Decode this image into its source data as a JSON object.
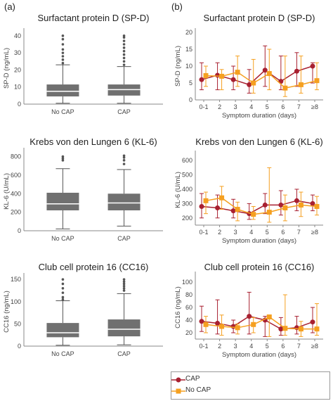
{
  "panel_labels": [
    "(a)",
    "(b)"
  ],
  "colors": {
    "cap": "#a82030",
    "nocap": "#f5a020",
    "box": "#707070"
  },
  "legend": {
    "cap": "CAP",
    "nocap": "No CAP"
  },
  "chart_data": [
    {
      "type": "box",
      "title": "Surfactant protein D (SP-D)",
      "ylabel": "SP-D (ng/mL)",
      "ylim": [
        0,
        42
      ],
      "yticks": [
        0,
        10,
        20,
        30,
        40
      ],
      "categories": [
        "No CAP",
        "CAP"
      ],
      "boxes": [
        {
          "whisker_low": 0.5,
          "q1": 4.5,
          "median": 7.5,
          "q3": 11.5,
          "whisker_high": 23,
          "outliers": [
            24,
            26,
            28,
            30,
            32,
            35,
            38,
            40
          ]
        },
        {
          "whisker_low": 0.5,
          "q1": 5,
          "median": 8.5,
          "q3": 11.5,
          "whisker_high": 22,
          "outliers": [
            23,
            25,
            27,
            29,
            31,
            33,
            35,
            37,
            39,
            40
          ]
        }
      ]
    },
    {
      "type": "box",
      "title": "Krebs von den Lungen 6 (KL-6)",
      "ylabel": "KL-6 (U/mL)",
      "ylim": [
        0,
        850
      ],
      "yticks": [
        0,
        200,
        400,
        600,
        800
      ],
      "categories": [
        "No CAP",
        "CAP"
      ],
      "boxes": [
        {
          "whisker_low": 20,
          "q1": 220,
          "median": 290,
          "q3": 410,
          "whisker_high": 670,
          "outliers": [
            760,
            780,
            800
          ]
        },
        {
          "whisker_low": 50,
          "q1": 220,
          "median": 300,
          "q3": 400,
          "whisker_high": 660,
          "outliers": [
            720,
            760,
            790,
            810
          ]
        }
      ]
    },
    {
      "type": "box",
      "title": "Club cell protein 16 (CC16)",
      "ylabel": "CC16 (ng/mL)",
      "ylim": [
        0,
        155
      ],
      "yticks": [
        0,
        50,
        100,
        150
      ],
      "categories": [
        "No CAP",
        "CAP"
      ],
      "boxes": [
        {
          "whisker_low": 2,
          "q1": 20,
          "median": 30,
          "q3": 52,
          "whisker_high": 102,
          "outliers": [
            105,
            110,
            120,
            130,
            140,
            150
          ]
        },
        {
          "whisker_low": 3,
          "q1": 22,
          "median": 38,
          "q3": 60,
          "whisker_high": 118,
          "outliers": [
            125,
            130,
            135,
            140,
            145,
            150
          ]
        }
      ]
    },
    {
      "type": "line",
      "title": "Surfactant protein D (SP-D)",
      "ylabel": "SP-D (ng/mL)",
      "xlabel": "Symptom duration (days)",
      "ylim": [
        0,
        20
      ],
      "yticks": [
        0,
        5,
        10,
        15,
        20
      ],
      "categories": [
        "0-1",
        "2",
        "3",
        "4",
        "5",
        "6",
        "7",
        "≥8"
      ],
      "series": [
        {
          "name": "CAP",
          "values": [
            6,
            7.3,
            6,
            4.5,
            8.8,
            5.5,
            8.5,
            10
          ],
          "low": [
            3,
            3,
            3,
            2,
            4,
            3,
            4,
            5
          ],
          "high": [
            11,
            11,
            10,
            9,
            16,
            13,
            14,
            11
          ]
        },
        {
          "name": "No CAP",
          "values": [
            7.2,
            7,
            8.2,
            5,
            7.8,
            3.5,
            4.5,
            5.7
          ],
          "low": [
            4,
            3,
            4,
            2,
            3,
            1,
            2,
            3
          ],
          "high": [
            10,
            9,
            13,
            12,
            15,
            13,
            13,
            11
          ]
        }
      ]
    },
    {
      "type": "line",
      "title": "Krebs von den Lungen 6 (KL-6)",
      "ylabel": "KL-6 (U/mL)",
      "xlabel": "Symptom duration (days)",
      "ylim": [
        150,
        640
      ],
      "yticks": [
        200,
        300,
        400,
        500,
        600
      ],
      "categories": [
        "0-1",
        "2",
        "3",
        "4",
        "5",
        "6",
        "7",
        "≥8"
      ],
      "series": [
        {
          "name": "CAP",
          "values": [
            280,
            270,
            250,
            230,
            290,
            290,
            320,
            300
          ],
          "low": [
            200,
            200,
            200,
            190,
            230,
            220,
            250,
            250
          ],
          "high": [
            370,
            360,
            330,
            300,
            370,
            390,
            400,
            360
          ]
        },
        {
          "name": "No CAP",
          "values": [
            320,
            340,
            260,
            225,
            240,
            270,
            290,
            280
          ],
          "low": [
            230,
            260,
            180,
            190,
            170,
            180,
            210,
            220
          ],
          "high": [
            380,
            420,
            310,
            280,
            550,
            360,
            380,
            350
          ]
        }
      ]
    },
    {
      "type": "line",
      "title": "Club cell protein 16 (CC16)",
      "ylabel": "CC16 (ng/mL)",
      "xlabel": "Symptom duration (days)",
      "ylim": [
        10,
        110
      ],
      "yticks": [
        20,
        40,
        60,
        80,
        100
      ],
      "categories": [
        "0-1",
        "2",
        "3",
        "4",
        "5",
        "6",
        "7",
        "≥8"
      ],
      "series": [
        {
          "name": "CAP",
          "values": [
            38,
            35,
            30,
            46,
            40,
            26,
            28,
            37
          ],
          "low": [
            22,
            18,
            20,
            18,
            14,
            16,
            18,
            20
          ],
          "high": [
            62,
            72,
            40,
            84,
            46,
            44,
            46,
            60
          ]
        },
        {
          "name": "No CAP",
          "values": [
            33,
            30,
            28,
            33,
            45,
            27,
            26,
            26
          ],
          "low": [
            20,
            16,
            18,
            20,
            14,
            16,
            14,
            16
          ],
          "high": [
            46,
            48,
            34,
            44,
            48,
            80,
            38,
            66
          ]
        }
      ]
    }
  ]
}
